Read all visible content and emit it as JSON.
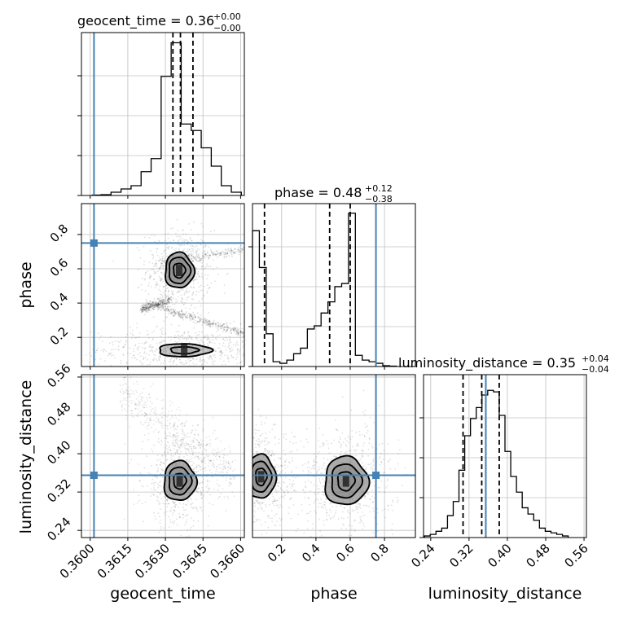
{
  "chart_data": {
    "type": "corner",
    "parameters": [
      "geocent_time",
      "phase",
      "luminosity_distance"
    ],
    "injection": {
      "geocent_time": 0.36015,
      "phase": 0.75,
      "luminosity_distance": 0.355
    },
    "titles": [
      {
        "text": "geocent_time = 0.36",
        "sup": "+0.00",
        "sub": "−0.00"
      },
      {
        "text": "phase = 0.48",
        "sup": "+0.12",
        "sub": "−0.38"
      },
      {
        "text": "luminosity_distance = 0.35",
        "sup": "+0.04",
        "sub": "−0.04"
      }
    ],
    "axes": {
      "geocent_time": {
        "range": [
          0.35965,
          0.36615
        ],
        "ticks": [
          0.36,
          0.3615,
          0.363,
          0.3645,
          0.366
        ],
        "tick_labels": [
          "0.3600",
          "0.3615",
          "0.3630",
          "0.3645",
          "0.3660"
        ],
        "label": "geocent_time"
      },
      "phase": {
        "range": [
          0.03,
          0.98
        ],
        "ticks": [
          0.2,
          0.4,
          0.6,
          0.8
        ],
        "tick_labels": [
          "0.2",
          "0.4",
          "0.6",
          "0.8"
        ],
        "label": "phase"
      },
      "luminosity_distance": {
        "range": [
          0.225,
          0.565
        ],
        "ticks": [
          0.24,
          0.32,
          0.4,
          0.48,
          0.56
        ],
        "tick_labels": [
          "0.24",
          "0.32",
          "0.40",
          "0.48",
          "0.56"
        ],
        "label": "luminosity_distance"
      }
    },
    "hist_geocent_time": {
      "edges": [
        0.36008,
        0.36043,
        0.36083,
        0.36123,
        0.36163,
        0.36203,
        0.36243,
        0.36283,
        0.36323,
        0.36363,
        0.36403,
        0.36443,
        0.36483,
        0.36523,
        0.36563,
        0.36603
      ],
      "values": [
        0.2,
        0.4,
        1.6,
        3.2,
        4.8,
        11.7,
        18.1,
        58.5,
        75,
        35.1,
        31.9,
        23.4,
        14.4,
        4.8,
        1.6
      ],
      "ymax": 80,
      "quantiles": [
        0.3633,
        0.3636,
        0.3641
      ]
    },
    "hist_phase": {
      "edges": [
        0.03,
        0.07,
        0.11,
        0.15,
        0.19,
        0.23,
        0.27,
        0.31,
        0.35,
        0.39,
        0.43,
        0.47,
        0.51,
        0.55,
        0.59,
        0.63,
        0.67,
        0.71,
        0.75,
        0.79,
        0.83,
        0.87
      ],
      "values": [
        17,
        12.4,
        4.1,
        0.6,
        0.4,
        0.8,
        1.6,
        2.3,
        4.7,
        5.1,
        6.7,
        8.1,
        10,
        10.4,
        19.2,
        1.4,
        0.8,
        0.6,
        0.4,
        0.1,
        0.05
      ],
      "ymax": 20.4,
      "quantiles": [
        0.1,
        0.48,
        0.6
      ]
    },
    "hist_luminosity_distance": {
      "edges": [
        0.227,
        0.239,
        0.251,
        0.263,
        0.275,
        0.287,
        0.299,
        0.311,
        0.323,
        0.335,
        0.347,
        0.359,
        0.371,
        0.383,
        0.395,
        0.407,
        0.419,
        0.431,
        0.443,
        0.455,
        0.467,
        0.479,
        0.491,
        0.503,
        0.515,
        0.527
      ],
      "values": [
        0.1,
        0.2,
        0.4,
        0.6,
        1.4,
        2.3,
        4.3,
        6.5,
        7.6,
        8.3,
        9.1,
        9.4,
        9.3,
        7.8,
        5.5,
        3.9,
        2.9,
        1.9,
        1.5,
        1.1,
        0.6,
        0.4,
        0.3,
        0.2,
        0.1
      ],
      "ymax": 10.4,
      "quantiles": [
        0.3075,
        0.3465,
        0.383
      ]
    },
    "contours_phase_vs_geocent_time": {
      "blobs": [
        {
          "cx": 0.36355,
          "cy": 0.59,
          "rx": 0.00025,
          "ry": 0.045,
          "levels": [
            0.4,
            0.95,
            1.7,
            2.3
          ]
        },
        {
          "cx": 0.36375,
          "cy": 0.125,
          "rx": 0.0007,
          "ry": 0.025,
          "levels": [
            0.3,
            0.8,
            1.5
          ]
        }
      ]
    },
    "contours_luminosity_distance_vs_geocent_time": {
      "blobs": [
        {
          "cx": 0.36357,
          "cy": 0.343,
          "rx": 0.00028,
          "ry": 0.018,
          "levels": [
            0.35,
            0.9,
            1.6,
            2.3
          ]
        }
      ]
    },
    "contours_luminosity_distance_vs_phase": {
      "blobs": [
        {
          "cx": 0.08,
          "cy": 0.352,
          "rx": 0.036,
          "ry": 0.02,
          "levels": [
            0.35,
            0.9,
            1.6,
            2.3
          ]
        },
        {
          "cx": 0.575,
          "cy": 0.343,
          "rx": 0.055,
          "ry": 0.022,
          "levels": [
            0.35,
            0.9,
            1.6,
            2.3
          ]
        }
      ]
    },
    "colors": {
      "truth": "#4682b4",
      "hist": "#000000",
      "grid": "#c0c0c0",
      "points": "#000000",
      "fill": "#7a7a7a"
    }
  }
}
